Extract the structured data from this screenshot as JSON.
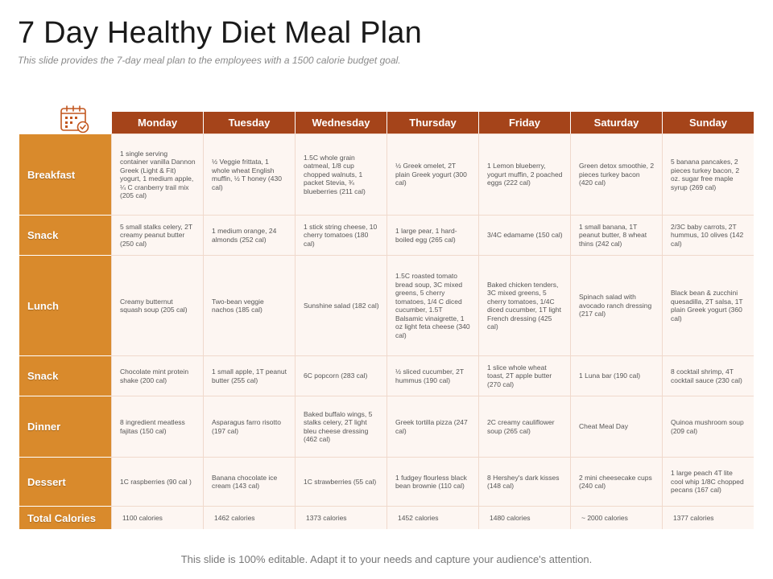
{
  "title": "7 Day Healthy Diet Meal Plan",
  "subtitle": "This slide provides the 7-day meal plan to the employees with a 1500 calorie budget goal.",
  "footer": "This slide is 100% editable. Adapt it to your needs and capture your audience's attention.",
  "colors": {
    "header": "#a5441a",
    "row_header": "#d98a2c",
    "cell_bg": "#fdf6f2"
  },
  "icon": "calendar-icon",
  "days": [
    "Monday",
    "Tuesday",
    "Wednesday",
    "Thursday",
    "Friday",
    "Saturday",
    "Sunday"
  ],
  "rows": [
    {
      "label": "Breakfast",
      "cells": [
        "1 single serving container vanilla Dannon Greek (Light & Fit) yogurt, 1 medium apple, ¼ C cranberry trail mix (205 cal)",
        "½ Veggie frittata, 1 whole wheat English muffin, ½ T honey (430 cal)",
        "1.5C whole grain oatmeal, 1/8 cup chopped walnuts, 1 packet Stevia, ¾ blueberries (211 cal)",
        "½ Greek omelet, 2T plain Greek yogurt (300 cal)",
        "1 Lemon blueberry, yogurt muffin, 2 poached eggs (222 cal)",
        "Green detox smoothie, 2 pieces turkey bacon (420 cal)",
        "5 banana pancakes, 2 pieces turkey bacon, 2 oz. sugar free maple syrup (269 cal)"
      ]
    },
    {
      "label": "Snack",
      "cells": [
        "5 small stalks celery, 2T creamy peanut butter (250 cal)",
        "1 medium orange, 24 almonds (252 cal)",
        "1 stick string cheese, 10 cherry tomatoes (180 cal)",
        "1 large pear, 1 hard-boiled egg (265 cal)",
        "3/4C edamame (150 cal)",
        "1 small banana, 1T peanut butter, 8 wheat thins (242 cal)",
        "2/3C baby carrots, 2T hummus, 10 olives (142 cal)"
      ]
    },
    {
      "label": "Lunch",
      "cells": [
        "Creamy butternut squash soup (205 cal)",
        "Two-bean veggie nachos (185 cal)",
        "Sunshine salad (182 cal)",
        "1.5C roasted tomato bread soup, 3C mixed greens, 5 cherry tomatoes, 1/4 C diced cucumber, 1.5T Balsamic vinaigrette, 1 oz light feta cheese (340 cal)",
        "Baked chicken tenders, 3C mixed greens, 5 cherry tomatoes, 1/4C diced cucumber, 1T light French dressing (425 cal)",
        "Spinach salad with avocado ranch dressing (217 cal)",
        "Black bean & zucchini quesadilla, 2T salsa, 1T plain Greek yogurt (360 cal)"
      ]
    },
    {
      "label": "Snack",
      "cells": [
        "Chocolate mint protein shake (200 cal)",
        "1 small apple, 1T peanut butter (255 cal)",
        "6C popcorn (283 cal)",
        "½ sliced cucumber, 2T hummus (190 cal)",
        "1 slice whole wheat toast, 2T apple butter (270 cal)",
        "1 Luna bar (190 cal)",
        "8 cocktail shrimp, 4T cocktail sauce (230 cal)"
      ]
    },
    {
      "label": "Dinner",
      "cells": [
        "8 ingredient meatless fajitas (150 cal)",
        "Asparagus farro risotto (197 cal)",
        "Baked buffalo wings, 5 stalks celery, 2T light bleu cheese dressing (462 cal)",
        "Greek tortilla pizza (247 cal)",
        "2C creamy cauliflower soup (265 cal)",
        "Cheat Meal Day",
        "Quinoa mushroom soup (209 cal)"
      ]
    },
    {
      "label": "Dessert",
      "cells": [
        "1C raspberries (90 cal )",
        "Banana chocolate ice cream (143 cal)",
        "1C strawberries (55 cal)",
        "1 fudgey flourless black bean brownie (110 cal)",
        "8 Hershey's dark kisses (148 cal)",
        "2 mini cheesecake cups (240 cal)",
        "1 large peach 4T lite cool whip 1/8C chopped pecans (167 cal)"
      ]
    },
    {
      "label": "Total Calories",
      "cells": [
        "1100 calories",
        "1462 calories",
        "1373 calories",
        "1452 calories",
        "1480 calories",
        "~ 2000 calories",
        "1377 calories"
      ]
    }
  ]
}
